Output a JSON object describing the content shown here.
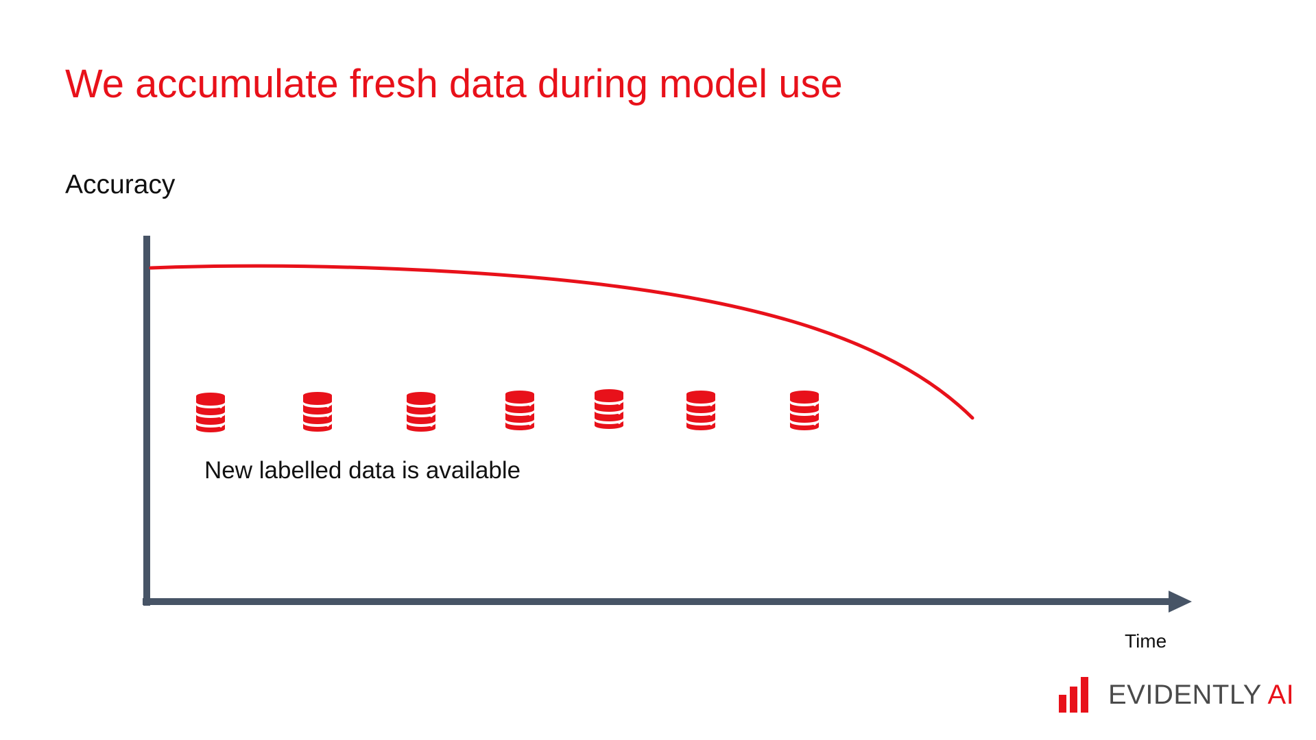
{
  "title": "We accumulate fresh data during model use",
  "y_axis_label": "Accuracy",
  "x_axis_label": "Time",
  "annotation": "New labelled data is available",
  "database_icon": "database-icon",
  "database_icon_count": 7,
  "brand": {
    "name_part1": "EVIDENTLY",
    "name_part2": " AI",
    "accent_color": "#e8111a",
    "text_color": "#4a4a4a"
  },
  "colors": {
    "title": "#e8111a",
    "curve": "#e8111a",
    "axes": "#475466",
    "icons": "#e8111a"
  }
}
